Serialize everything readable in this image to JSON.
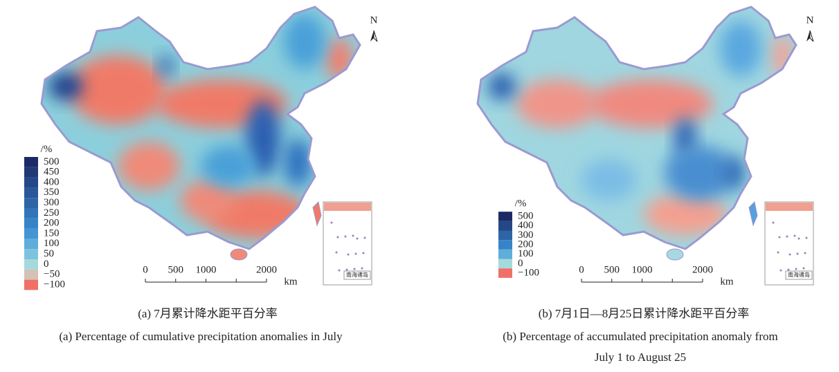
{
  "panels": [
    {
      "north": "N",
      "legend": {
        "unit": "/%",
        "labels": [
          "500",
          "450",
          "400",
          "350",
          "300",
          "250",
          "200",
          "150",
          "100",
          "50",
          "0",
          "−50",
          "−100"
        ]
      },
      "scale": {
        "ticks": [
          0,
          500,
          1000,
          2000
        ],
        "unit": "km"
      },
      "inset": "南海诸岛",
      "caption_cn": "(a) 7月累计降水距平百分率",
      "caption_en": [
        "(a) Percentage of cumulative precipitation anomalies in July"
      ]
    },
    {
      "north": "N",
      "legend": {
        "unit": "/%",
        "labels": [
          "500",
          "400",
          "300",
          "200",
          "100",
          "0",
          "−100"
        ]
      },
      "scale": {
        "ticks": [
          0,
          500,
          1000,
          2000
        ],
        "unit": "km"
      },
      "inset": "南海诸岛",
      "caption_cn": "(b) 7月1日—8月25日累计降水距平百分率",
      "caption_en": [
        "(b) Percentage of accumulated precipitation anomaly from",
        "July 1 to August 25"
      ]
    }
  ]
}
